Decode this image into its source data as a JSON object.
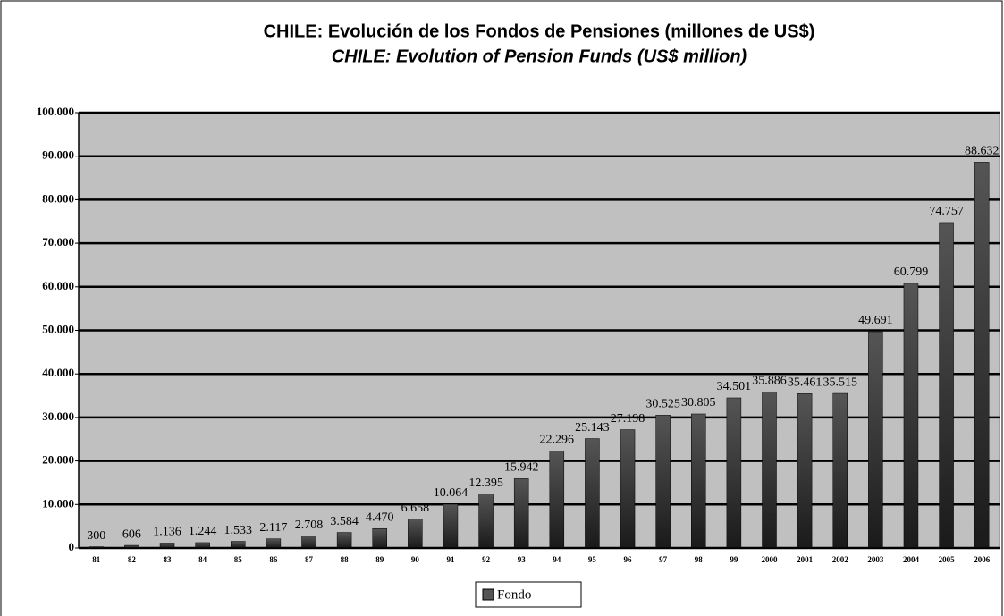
{
  "chart_data": {
    "type": "bar",
    "title": "CHILE: Evolución de los Fondos de Pensiones (millones de US$)",
    "subtitle": "CHILE: Evolution of Pension Funds (US$ million)",
    "categories": [
      "81",
      "82",
      "83",
      "84",
      "85",
      "86",
      "87",
      "88",
      "89",
      "90",
      "91",
      "92",
      "93",
      "94",
      "95",
      "96",
      "97",
      "98",
      "99",
      "2000",
      "2001",
      "2002",
      "2003",
      "2004",
      "2005",
      "2006"
    ],
    "series": [
      {
        "name": "Fondo",
        "color": "#555555",
        "values": [
          300,
          606,
          1136,
          1244,
          1533,
          2117,
          2708,
          3584,
          4470,
          6658,
          10064,
          12395,
          15942,
          22296,
          25143,
          27198,
          30525,
          30805,
          34501,
          35886,
          35461,
          35515,
          49691,
          60799,
          74757,
          88632
        ],
        "value_labels": [
          "300",
          "606",
          "1.136",
          "1.244",
          "1.533",
          "2.117",
          "2.708",
          "3.584",
          "4.470",
          "6.658",
          "10.064",
          "12.395",
          "15.942",
          "22.296",
          "25.143",
          "27.198",
          "30.525",
          "30.805",
          "34.501",
          "35.886",
          "35.461",
          "35.515",
          "49.691",
          "60.799",
          "74.757",
          "88.632"
        ]
      }
    ],
    "ylim": [
      0,
      100000
    ],
    "yticks": [
      0,
      {
        "value": 10000,
        "label": "10.000"
      },
      {
        "value": 20000,
        "label": "20.000"
      },
      {
        "value": 30000,
        "label": "30.000"
      },
      {
        "value": 40000,
        "label": "40.000"
      },
      {
        "value": 50000,
        "label": "50.000"
      },
      {
        "value": 60000,
        "label": "60.000"
      },
      {
        "value": 70000,
        "label": "70.000"
      },
      {
        "value": 80000,
        "label": "80.000"
      },
      {
        "value": 90000,
        "label": "90.000"
      },
      {
        "value": 100000,
        "label": "100.000"
      }
    ],
    "grid": true,
    "legend": "bottom"
  }
}
